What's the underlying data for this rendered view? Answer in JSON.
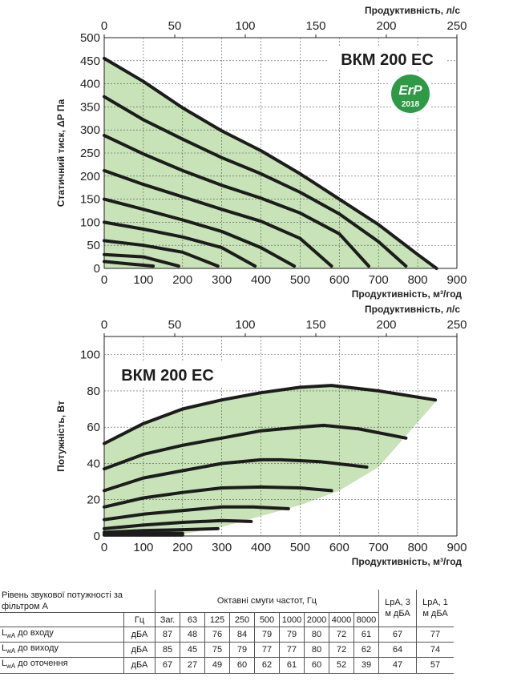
{
  "chart_data": [
    {
      "type": "line",
      "title": "ВКМ 200 ЕС",
      "xlabel": "Продуктивність, м³/год",
      "ylabel": "Статичний тиск, ΔP Па",
      "x2label": "Продуктивність, л/с",
      "xlim": [
        0,
        900
      ],
      "ylim": [
        0,
        500
      ],
      "x_ticks": [
        0,
        100,
        200,
        300,
        400,
        500,
        600,
        700,
        800,
        900
      ],
      "y_ticks": [
        0,
        50,
        100,
        150,
        200,
        250,
        300,
        350,
        400,
        450,
        500
      ],
      "x2_ticks": [
        0,
        50,
        100,
        150,
        200,
        250
      ],
      "grid": true,
      "badge": {
        "text": "ErP",
        "year": "2018",
        "color": "#2e9a46"
      },
      "fill_color": "#c7e3b7",
      "series": [
        {
          "points": [
            [
              0,
              455
            ],
            [
              100,
              405
            ],
            [
              200,
              348
            ],
            [
              300,
              298
            ],
            [
              400,
              255
            ],
            [
              500,
              205
            ],
            [
              600,
              150
            ],
            [
              700,
              95
            ],
            [
              800,
              30
            ],
            [
              848,
              0
            ]
          ]
        },
        {
          "points": [
            [
              0,
              372
            ],
            [
              100,
              322
            ],
            [
              200,
              280
            ],
            [
              300,
              240
            ],
            [
              400,
              205
            ],
            [
              500,
              165
            ],
            [
              600,
              118
            ],
            [
              700,
              58
            ],
            [
              770,
              5
            ]
          ]
        },
        {
          "points": [
            [
              0,
              288
            ],
            [
              100,
              248
            ],
            [
              200,
              212
            ],
            [
              300,
              180
            ],
            [
              400,
              152
            ],
            [
              500,
              120
            ],
            [
              600,
              75
            ],
            [
              675,
              5
            ]
          ]
        },
        {
          "points": [
            [
              0,
              212
            ],
            [
              100,
              182
            ],
            [
              200,
              155
            ],
            [
              300,
              128
            ],
            [
              400,
              102
            ],
            [
              500,
              65
            ],
            [
              580,
              5
            ]
          ]
        },
        {
          "points": [
            [
              0,
              150
            ],
            [
              100,
              128
            ],
            [
              200,
              105
            ],
            [
              300,
              80
            ],
            [
              400,
              45
            ],
            [
              485,
              5
            ]
          ]
        },
        {
          "points": [
            [
              0,
              100
            ],
            [
              100,
              85
            ],
            [
              200,
              68
            ],
            [
              300,
              45
            ],
            [
              385,
              5
            ]
          ]
        },
        {
          "points": [
            [
              0,
              60
            ],
            [
              100,
              50
            ],
            [
              200,
              35
            ],
            [
              290,
              5
            ]
          ]
        },
        {
          "points": [
            [
              0,
              30
            ],
            [
              100,
              25
            ],
            [
              190,
              5
            ]
          ]
        },
        {
          "points": [
            [
              0,
              15
            ],
            [
              60,
              10
            ],
            [
              125,
              5
            ]
          ]
        }
      ]
    },
    {
      "type": "line",
      "title": "ВКМ 200 ЕС",
      "xlabel": "Продуктивність, м³/год",
      "ylabel": "Потужність, Вт",
      "x2label": "Продуктивність, л/с",
      "xlim": [
        0,
        900
      ],
      "ylim": [
        0,
        110
      ],
      "x_ticks": [
        0,
        100,
        200,
        300,
        400,
        500,
        600,
        700,
        800,
        900
      ],
      "y_ticks": [
        0,
        20,
        40,
        60,
        80,
        100
      ],
      "x2_ticks": [
        0,
        50,
        100,
        150,
        200,
        250
      ],
      "grid": true,
      "fill_color": "#c7e3b7",
      "series": [
        {
          "points": [
            [
              0,
              51
            ],
            [
              100,
              62
            ],
            [
              200,
              70
            ],
            [
              300,
              75
            ],
            [
              400,
              79
            ],
            [
              500,
              82
            ],
            [
              580,
              83
            ],
            [
              700,
              80
            ],
            [
              845,
              75
            ]
          ]
        },
        {
          "points": [
            [
              0,
              37
            ],
            [
              100,
              45
            ],
            [
              200,
              50
            ],
            [
              300,
              54
            ],
            [
              400,
              58
            ],
            [
              500,
              60
            ],
            [
              560,
              61
            ],
            [
              650,
              59
            ],
            [
              770,
              54
            ]
          ]
        },
        {
          "points": [
            [
              0,
              25
            ],
            [
              100,
              32
            ],
            [
              200,
              36
            ],
            [
              300,
              40
            ],
            [
              400,
              42
            ],
            [
              450,
              42
            ],
            [
              550,
              41
            ],
            [
              670,
              38
            ]
          ]
        },
        {
          "points": [
            [
              0,
              16
            ],
            [
              100,
              21
            ],
            [
              200,
              24
            ],
            [
              300,
              26.5
            ],
            [
              400,
              27
            ],
            [
              500,
              26.5
            ],
            [
              580,
              25
            ]
          ]
        },
        {
          "points": [
            [
              0,
              9
            ],
            [
              100,
              12
            ],
            [
              200,
              14
            ],
            [
              300,
              16
            ],
            [
              380,
              16
            ],
            [
              470,
              15
            ]
          ]
        },
        {
          "points": [
            [
              0,
              4
            ],
            [
              100,
              6
            ],
            [
              200,
              7.5
            ],
            [
              300,
              8.5
            ],
            [
              375,
              8
            ]
          ]
        },
        {
          "points": [
            [
              0,
              2
            ],
            [
              100,
              3
            ],
            [
              200,
              3.5
            ],
            [
              290,
              4
            ]
          ]
        },
        {
          "points": [
            [
              0,
              1
            ],
            [
              100,
              1.5
            ],
            [
              200,
              1.5
            ]
          ]
        },
        {
          "points": [
            [
              0,
              0.5
            ],
            [
              100,
              0.5
            ],
            [
              200,
              0.5
            ]
          ]
        }
      ]
    }
  ],
  "table": {
    "header_label": "Рівень звукової потужності за фільтром А",
    "octave_label": "Октавні смуги частот, Гц",
    "hz_label": "Гц",
    "lpa3_label": "LpA, 3 м дБА",
    "lpa1_label": "LpA, 1 м дБА",
    "columns": [
      "Заг.",
      "63",
      "125",
      "250",
      "500",
      "1000",
      "2000",
      "4000",
      "8000"
    ],
    "rows": [
      {
        "prefix": "L",
        "sub": "wA",
        "label": " до входу",
        "unit": "дБА",
        "values": [
          "87",
          "48",
          "76",
          "84",
          "79",
          "79",
          "80",
          "72",
          "61"
        ],
        "lpa3": "67",
        "lpa1": "77"
      },
      {
        "prefix": "L",
        "sub": "wA",
        "label": " до виходу",
        "unit": "дБА",
        "values": [
          "85",
          "45",
          "75",
          "79",
          "77",
          "77",
          "80",
          "72",
          "62"
        ],
        "lpa3": "64",
        "lpa1": "74"
      },
      {
        "prefix": "L",
        "sub": "wA",
        "label": " до оточення",
        "unit": "дБА",
        "values": [
          "67",
          "27",
          "49",
          "60",
          "62",
          "61",
          "60",
          "52",
          "39"
        ],
        "lpa3": "47",
        "lpa1": "57"
      }
    ]
  }
}
